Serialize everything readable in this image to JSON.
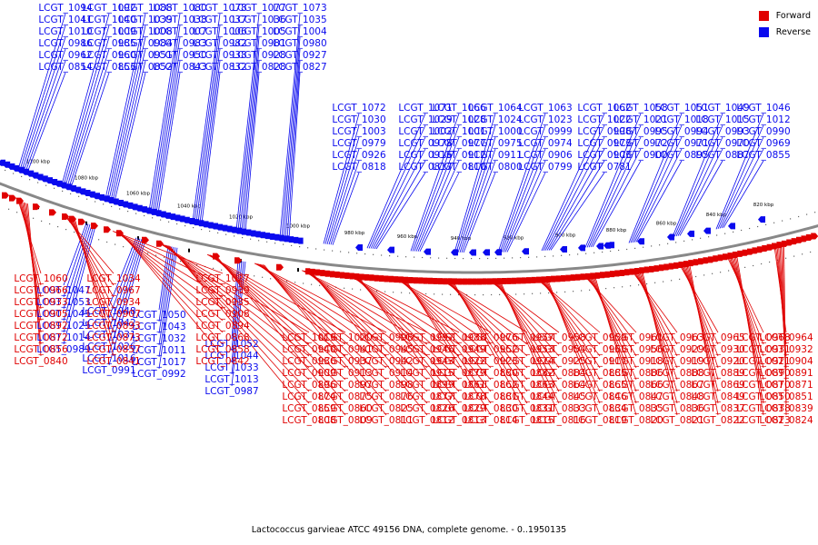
{
  "caption": "Lactococcus garvieae ATCC 49156 DNA, complete genome. - 0..1950135",
  "legend": {
    "forward": {
      "label": "Forward",
      "color": "#e00000"
    },
    "reverse": {
      "label": "Reverse",
      "color": "#0a0aee"
    }
  },
  "colors": {
    "forward": "#e00000",
    "reverse": "#0a0aee",
    "backbone": "#888888"
  },
  "scale_ticks": [
    "1100 kbp",
    "1080 kbp",
    "1060 kbp",
    "1040 kbp",
    "1020 kbp",
    "1000 kbp",
    "980 kbp",
    "960 kbp",
    "940 kbp",
    "920 kbp",
    "900 kbp",
    "880 kbp",
    "860 kbp",
    "840 kbp",
    "820 kbp"
  ],
  "reverse_genes": [
    "LCGT_1094",
    "LCGT_1092",
    "LCGT_1088",
    "LCGT_1080",
    "LCGT_1078",
    "LCGT_1077",
    "LCGT_1073",
    "LCGT_1072",
    "LCGT_1071",
    "LCGT_1066",
    "LCGT_1064",
    "LCGT_1063",
    "LCGT_1062",
    "LCGT_1058",
    "LCGT_1051",
    "LCGT_1049",
    "LCGT_1046",
    "LCGT_1041",
    "LCGT_1040",
    "LCGT_1039",
    "LCGT_1038",
    "LCGT_1037",
    "LCGT_1036",
    "LCGT_1035",
    "LCGT_1030",
    "LCGT_1029",
    "LCGT_1028",
    "LCGT_1024",
    "LCGT_1023",
    "LCGT_1022",
    "LCGT_1021",
    "LCGT_1018",
    "LCGT_1015",
    "LCGT_1012",
    "LCGT_1010",
    "LCGT_1009",
    "LCGT_1008",
    "LCGT_1007",
    "LCGT_1006",
    "LCGT_1005",
    "LCGT_1004",
    "LCGT_1003",
    "LCGT_1002",
    "LCGT_1001",
    "LCGT_1000",
    "LCGT_0999",
    "LCGT_0998",
    "LCGT_0995",
    "LCGT_0994",
    "LCGT_0993",
    "LCGT_0990",
    "LCGT_0986",
    "LCGT_0985",
    "LCGT_0984",
    "LCGT_0983",
    "LCGT_0982",
    "LCGT_0981",
    "LCGT_0980",
    "LCGT_0979",
    "LCGT_0978",
    "LCGT_0977",
    "LCGT_0975",
    "LCGT_0974",
    "LCGT_0973",
    "LCGT_0972",
    "LCGT_0971",
    "LCGT_0970",
    "LCGT_0969",
    "LCGT_0962",
    "LCGT_0960",
    "LCGT_0951",
    "LCGT_0950",
    "LCGT_0938",
    "LCGT_0928",
    "LCGT_0927",
    "LCGT_0926",
    "LCGT_0916",
    "LCGT_0912",
    "LCGT_0911",
    "LCGT_0906",
    "LCGT_0903",
    "LCGT_0900",
    "LCGT_0895",
    "LCGT_0887",
    "LCGT_0855",
    "LCGT_0854",
    "LCGT_0853",
    "LCGT_0852",
    "LCGT_0843",
    "LCGT_0832",
    "LCGT_0828",
    "LCGT_0827",
    "LCGT_0818",
    "LCGT_0817",
    "LCGT_0810",
    "LCGT_0800",
    "LCGT_0799",
    "LCGT_0781"
  ],
  "reverse_genes_lower": [
    "LCGT_1047",
    "LCGT_1048",
    "LCGT_1050",
    "LCGT_1052",
    "LCGT_1053",
    "LCGT_1042",
    "LCGT_1043",
    "LCGT_1044",
    "LCGT_1045",
    "LCGT_1031",
    "LCGT_1032",
    "LCGT_1033",
    "LCGT_1025",
    "LCGT_1026",
    "LCGT_1011",
    "LCGT_1013",
    "LCGT_1014",
    "LCGT_1016",
    "LCGT_1017",
    "LCGT_0987",
    "LCGT_0989",
    "LCGT_0991",
    "LCGT_0992"
  ],
  "forward_genes": [
    "LCGT_1060",
    "LCGT_1034",
    "LCGT_1027",
    "LCGT_1019",
    "LCGT_1020",
    "LCGT_0996",
    "LCGT_0997",
    "LCGT_0988",
    "LCGT_0976",
    "LCGT_0957",
    "LCGT_0958",
    "LCGT_0959",
    "LCGT_0961",
    "LCGT_0963",
    "LCGT_0965",
    "LCGT_0968",
    "LCGT_0964",
    "LCGT_0966",
    "LCGT_0967",
    "LCGT_0939",
    "LCGT_0940",
    "LCGT_0941",
    "LCGT_0945",
    "LCGT_0946",
    "LCGT_0949",
    "LCGT_0952",
    "LCGT_0953",
    "LCGT_0954",
    "LCGT_0955",
    "LCGT_0956",
    "LCGT_0929",
    "LCGT_0930",
    "LCGT_0931",
    "LCGT_0932",
    "LCGT_0933",
    "LCGT_0934",
    "LCGT_0935",
    "LCGT_0936",
    "LCGT_0937",
    "LCGT_0942",
    "LCGT_0943",
    "LCGT_0922",
    "LCGT_0923",
    "LCGT_0924",
    "LCGT_0925",
    "LCGT_0917",
    "LCGT_0918",
    "LCGT_0919",
    "LCGT_0920",
    "LCGT_0921",
    "LCGT_0904",
    "LCGT_0905",
    "LCGT_0907",
    "LCGT_0908",
    "LCGT_0909",
    "LCGT_0913",
    "LCGT_0914",
    "LCGT_0915",
    "LCGT_0879",
    "LCGT_0880",
    "LCGT_0882",
    "LCGT_0884",
    "LCGT_0885",
    "LCGT_0886",
    "LCGT_0888",
    "LCGT_0889",
    "LCGT_0890",
    "LCGT_0891",
    "LCGT_0892",
    "LCGT_0893",
    "LCGT_0894",
    "LCGT_0896",
    "LCGT_0897",
    "LCGT_0898",
    "LCGT_0899",
    "LCGT_0861",
    "LCGT_0862",
    "LCGT_0863",
    "LCGT_0864",
    "LCGT_0865",
    "LCGT_0866",
    "LCGT_0867",
    "LCGT_0869",
    "LCGT_0870",
    "LCGT_0871",
    "LCGT_0872",
    "LCGT_0873",
    "LCGT_0868",
    "LCGT_0874",
    "LCGT_0875",
    "LCGT_0876",
    "LCGT_0877",
    "LCGT_0878",
    "LCGT_0881",
    "LCGT_0844",
    "LCGT_0845",
    "LCGT_0846",
    "LCGT_0847",
    "LCGT_0848",
    "LCGT_0849",
    "LCGT_0850",
    "LCGT_0851",
    "LCGT_0856",
    "LCGT_0857",
    "LCGT_0858",
    "LCGT_0859",
    "LCGT_0860",
    "LCGT_0825",
    "LCGT_0826",
    "LCGT_0829",
    "LCGT_0830",
    "LCGT_0831",
    "LCGT_0833",
    "LCGT_0834",
    "LCGT_0835",
    "LCGT_0836",
    "LCGT_0837",
    "LCGT_0838",
    "LCGT_0839",
    "LCGT_0840",
    "LCGT_0841",
    "LCGT_0842",
    "LCGT_0808",
    "LCGT_0809",
    "LCGT_0811",
    "LCGT_0812",
    "LCGT_0813",
    "LCGT_0814",
    "LCGT_0815",
    "LCGT_0816",
    "LCGT_0819",
    "LCGT_0820",
    "LCGT_0821",
    "LCGT_0822",
    "LCGT_0823",
    "LCGT_0824"
  ]
}
